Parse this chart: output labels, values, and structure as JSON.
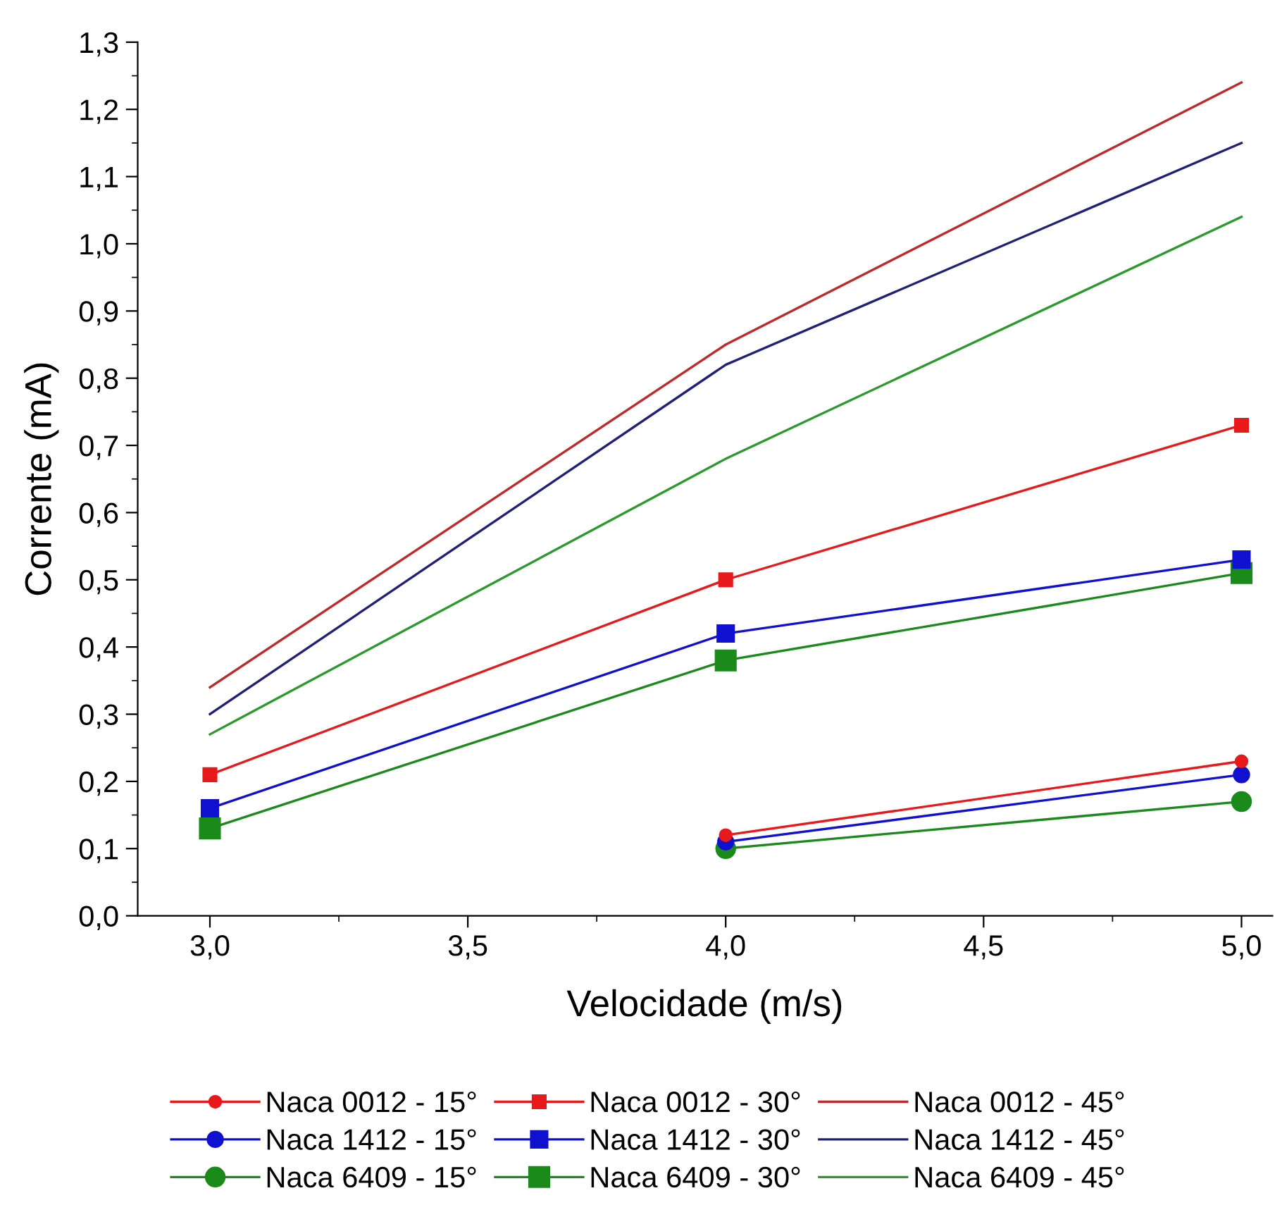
{
  "chart_data": {
    "type": "line",
    "xlabel": "Velocidade (m/s)",
    "ylabel": "Corrente (mA)",
    "xlim": [
      2.86,
      5.06
    ],
    "ylim": [
      0,
      1.3
    ],
    "xticks": [
      {
        "value": 3.0,
        "label": "3,0"
      },
      {
        "value": 3.5,
        "label": "3,5"
      },
      {
        "value": 4.0,
        "label": "4,0"
      },
      {
        "value": 4.5,
        "label": "4,5"
      },
      {
        "value": 5.0,
        "label": "5,0"
      }
    ],
    "yticks": [
      {
        "value": 0.0,
        "label": "0,0"
      },
      {
        "value": 0.1,
        "label": "0,1"
      },
      {
        "value": 0.2,
        "label": "0,2"
      },
      {
        "value": 0.3,
        "label": "0,3"
      },
      {
        "value": 0.4,
        "label": "0,4"
      },
      {
        "value": 0.5,
        "label": "0,5"
      },
      {
        "value": 0.6,
        "label": "0,6"
      },
      {
        "value": 0.7,
        "label": "0,7"
      },
      {
        "value": 0.8,
        "label": "0,8"
      },
      {
        "value": 0.9,
        "label": "0,9"
      },
      {
        "value": 1.0,
        "label": "1,0"
      },
      {
        "value": 1.1,
        "label": "1,1"
      },
      {
        "value": 1.2,
        "label": "1,2"
      },
      {
        "value": 1.3,
        "label": "1,3"
      }
    ],
    "grid": false,
    "legend": "bottom",
    "line_style": "solid",
    "series": [
      {
        "name": "Naca 0012 - 15°",
        "color": "#e8191a",
        "marker": "circle",
        "x": [
          4,
          5
        ],
        "values": [
          0.12,
          0.23
        ]
      },
      {
        "name": "Naca 0012 - 30°",
        "color": "#e8191a",
        "marker": "square",
        "x": [
          3,
          4,
          5
        ],
        "values": [
          0.21,
          0.5,
          0.73
        ]
      },
      {
        "name": "Naca 0012 - 45°",
        "color": "#c0282a",
        "marker": "none",
        "x": [
          3,
          4,
          5
        ],
        "values": [
          0.34,
          0.85,
          1.24
        ]
      },
      {
        "name": "Naca 1412 - 15°",
        "color": "#1010d0",
        "marker": "circle",
        "x": [
          4,
          5
        ],
        "values": [
          0.11,
          0.21
        ]
      },
      {
        "name": "Naca 1412 - 30°",
        "color": "#1010d0",
        "marker": "square",
        "x": [
          3,
          4,
          5
        ],
        "values": [
          0.16,
          0.42,
          0.53
        ]
      },
      {
        "name": "Naca 1412 - 45°",
        "color": "#20207a",
        "marker": "none",
        "x": [
          3,
          4,
          5
        ],
        "values": [
          0.3,
          0.82,
          1.15
        ]
      },
      {
        "name": "Naca 6409 - 15°",
        "color": "#1a8a1a",
        "marker": "circle",
        "x": [
          4,
          5
        ],
        "values": [
          0.1,
          0.17
        ]
      },
      {
        "name": "Naca 6409 - 30°",
        "color": "#1a8a1a",
        "marker": "square",
        "x": [
          3,
          4,
          5
        ],
        "values": [
          0.13,
          0.38,
          0.51
        ]
      },
      {
        "name": "Naca 6409 - 45°",
        "color": "#2a9a2a",
        "marker": "none",
        "x": [
          3,
          4,
          5
        ],
        "values": [
          0.27,
          0.68,
          1.04
        ]
      }
    ]
  }
}
